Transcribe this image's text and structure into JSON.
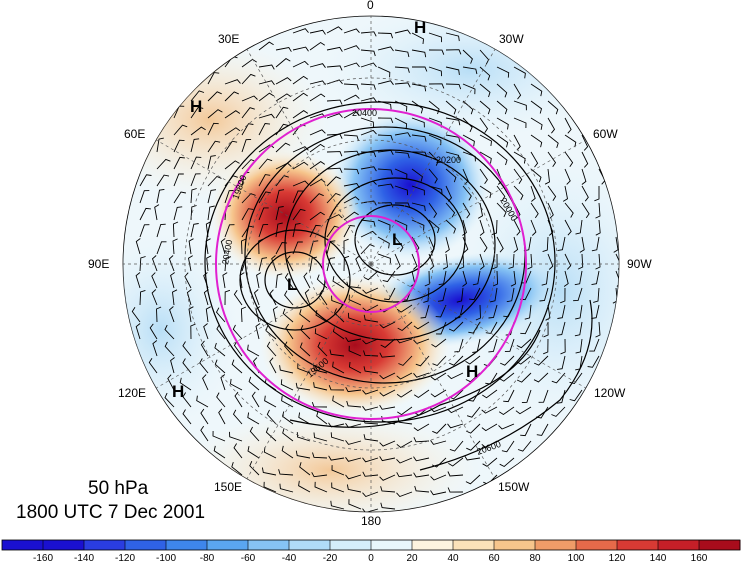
{
  "map": {
    "level_label": "50 hPa",
    "time_label": "1800 UTC 7 Dec 2001",
    "longitude_labels": [
      {
        "text": "0",
        "id": "lon-0"
      },
      {
        "text": "30W",
        "id": "lon-30w"
      },
      {
        "text": "60W",
        "id": "lon-60w"
      },
      {
        "text": "90W",
        "id": "lon-90w"
      },
      {
        "text": "120W",
        "id": "lon-120w"
      },
      {
        "text": "150W",
        "id": "lon-150w"
      },
      {
        "text": "180",
        "id": "lon-180"
      },
      {
        "text": "150E",
        "id": "lon-150e"
      },
      {
        "text": "120E",
        "id": "lon-120e"
      },
      {
        "text": "90E",
        "id": "lon-90e"
      },
      {
        "text": "60E",
        "id": "lon-60e"
      },
      {
        "text": "30E",
        "id": "lon-30e"
      }
    ],
    "pressure_centers": [
      {
        "text": "H",
        "id": "high-top"
      },
      {
        "text": "H",
        "id": "high-left"
      },
      {
        "text": "H",
        "id": "high-lower-left"
      },
      {
        "text": "H",
        "id": "high-lower-right"
      },
      {
        "text": "L",
        "id": "low-center"
      },
      {
        "text": "L",
        "id": "low-left"
      }
    ],
    "contour_labels": [
      "20400",
      "20200",
      "20400",
      "19800",
      "20000",
      "20600",
      "19600"
    ],
    "colors": {
      "neg_max": "#1a10d0",
      "pos_max": "#b01020",
      "ring": "#e020d0",
      "contour": "#000000",
      "dashed_grid": "#555555"
    }
  },
  "colorbar": {
    "tick_labels": [
      "-160",
      "-140",
      "-120",
      "-100",
      "-80",
      "-60",
      "-40",
      "-20",
      "0",
      "20",
      "40",
      "60",
      "80",
      "100",
      "120",
      "140",
      "160"
    ],
    "colors": [
      "#1a10d0",
      "#2a3de0",
      "#2f62e6",
      "#3e86ec",
      "#5aa6f0",
      "#86c3f4",
      "#b0dcf8",
      "#d4eefb",
      "#e9f7fc",
      "#fdf4df",
      "#fbe2b9",
      "#f6c58c",
      "#ef9c68",
      "#e66a4a",
      "#d83a34",
      "#c51f28",
      "#a80c1c"
    ]
  }
}
